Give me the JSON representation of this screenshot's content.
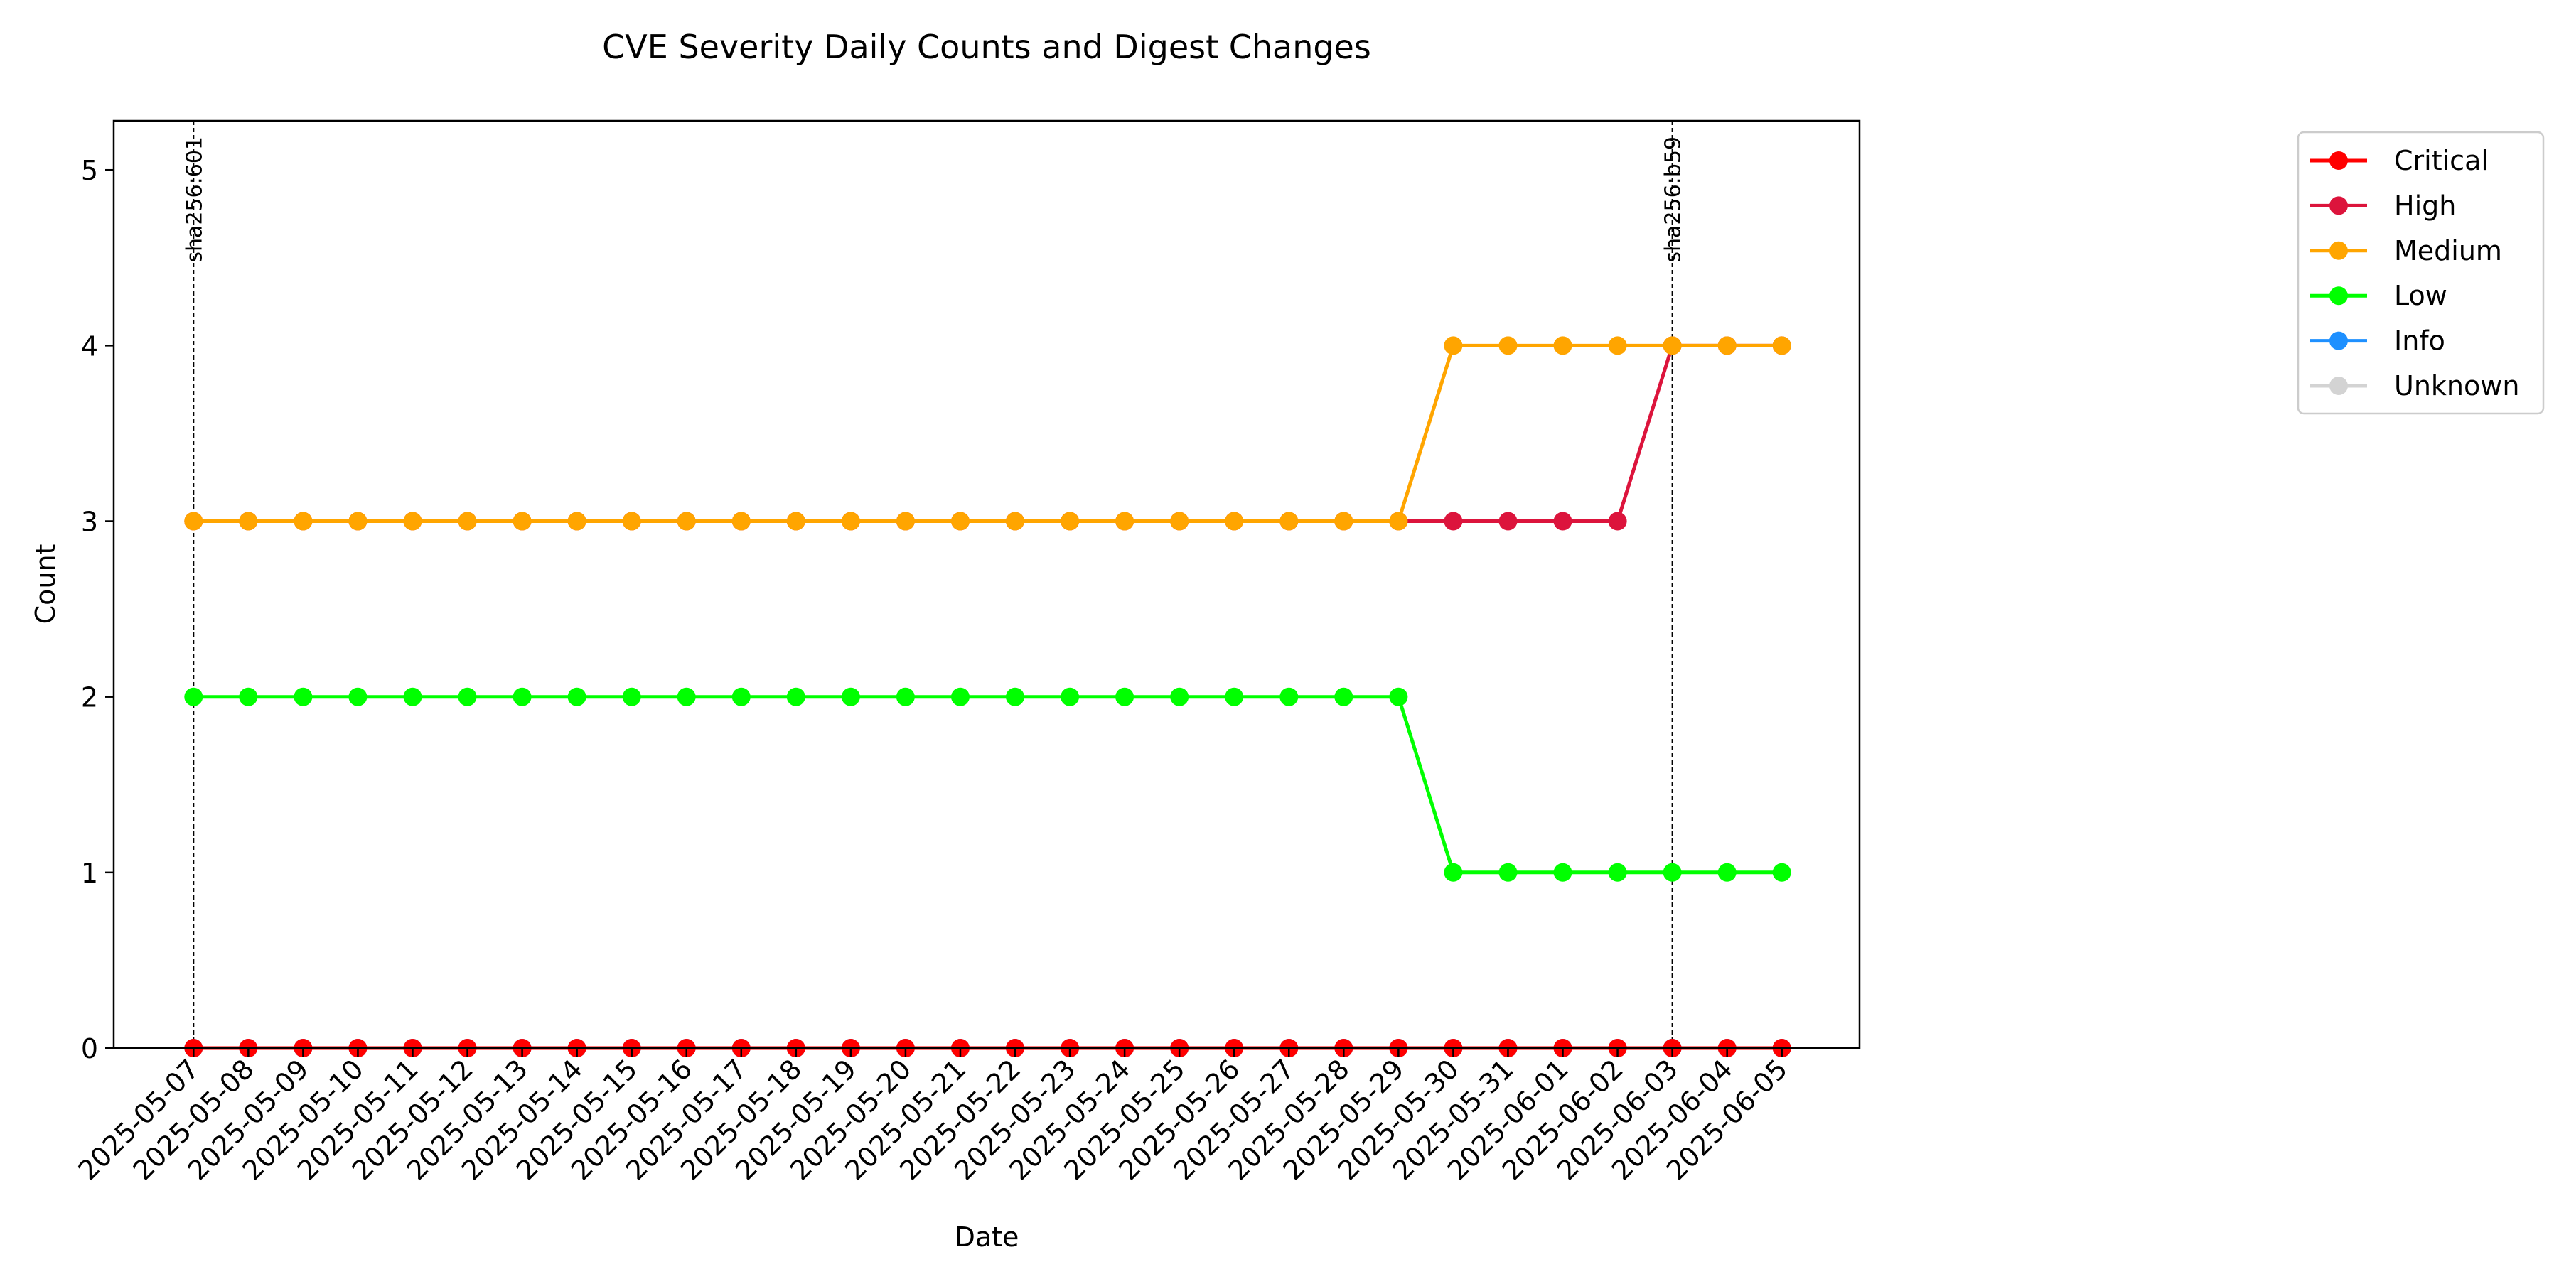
{
  "chart_data": {
    "type": "line",
    "title": "CVE Severity Daily Counts and Digest Changes",
    "xlabel": "Date",
    "ylabel": "Count",
    "ylim": [
      0,
      5.28
    ],
    "yticks": [
      0,
      1,
      2,
      3,
      4,
      5
    ],
    "grid": false,
    "legend_position": "outside-right-top",
    "x": [
      "2025-05-07",
      "2025-05-08",
      "2025-05-09",
      "2025-05-10",
      "2025-05-11",
      "2025-05-12",
      "2025-05-13",
      "2025-05-14",
      "2025-05-15",
      "2025-05-16",
      "2025-05-17",
      "2025-05-18",
      "2025-05-19",
      "2025-05-20",
      "2025-05-21",
      "2025-05-22",
      "2025-05-23",
      "2025-05-24",
      "2025-05-25",
      "2025-05-26",
      "2025-05-27",
      "2025-05-28",
      "2025-05-29",
      "2025-05-30",
      "2025-05-31",
      "2025-06-01",
      "2025-06-02",
      "2025-06-03",
      "2025-06-04",
      "2025-06-05"
    ],
    "series": [
      {
        "name": "Critical",
        "color": "#ff0000",
        "values": [
          0,
          0,
          0,
          0,
          0,
          0,
          0,
          0,
          0,
          0,
          0,
          0,
          0,
          0,
          0,
          0,
          0,
          0,
          0,
          0,
          0,
          0,
          0,
          0,
          0,
          0,
          0,
          0,
          0,
          0
        ]
      },
      {
        "name": "High",
        "color": "#dc143c",
        "values": [
          3,
          3,
          3,
          3,
          3,
          3,
          3,
          3,
          3,
          3,
          3,
          3,
          3,
          3,
          3,
          3,
          3,
          3,
          3,
          3,
          3,
          3,
          3,
          3,
          3,
          3,
          3,
          4,
          4,
          4
        ]
      },
      {
        "name": "Medium",
        "color": "#ffa500",
        "values": [
          3,
          3,
          3,
          3,
          3,
          3,
          3,
          3,
          3,
          3,
          3,
          3,
          3,
          3,
          3,
          3,
          3,
          3,
          3,
          3,
          3,
          3,
          3,
          4,
          4,
          4,
          4,
          4,
          4,
          4
        ]
      },
      {
        "name": "Low",
        "color": "#00ff00",
        "values": [
          2,
          2,
          2,
          2,
          2,
          2,
          2,
          2,
          2,
          2,
          2,
          2,
          2,
          2,
          2,
          2,
          2,
          2,
          2,
          2,
          2,
          2,
          2,
          1,
          1,
          1,
          1,
          1,
          1,
          1
        ]
      },
      {
        "name": "Info",
        "color": "#1e90ff",
        "values": [
          0,
          0,
          0,
          0,
          0,
          0,
          0,
          0,
          0,
          0,
          0,
          0,
          0,
          0,
          0,
          0,
          0,
          0,
          0,
          0,
          0,
          0,
          0,
          0,
          0,
          0,
          0,
          0,
          0,
          0
        ]
      },
      {
        "name": "Unknown",
        "color": "#d3d3d3",
        "values": [
          0,
          0,
          0,
          0,
          0,
          0,
          0,
          0,
          0,
          0,
          0,
          0,
          0,
          0,
          0,
          0,
          0,
          0,
          0,
          0,
          0,
          0,
          0,
          0,
          0,
          0,
          0,
          0,
          0,
          0
        ]
      }
    ],
    "annotations": [
      {
        "date": "2025-05-07",
        "label": "sha256:601"
      },
      {
        "date": "2025-06-03",
        "label": "sha256:b59"
      }
    ]
  }
}
